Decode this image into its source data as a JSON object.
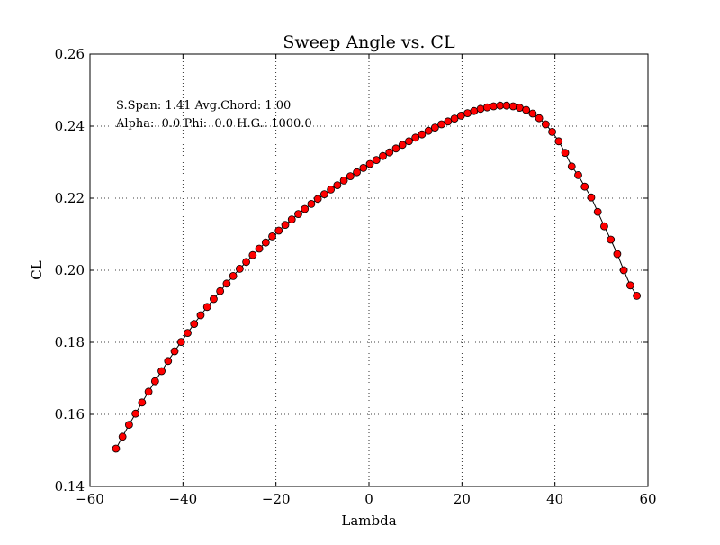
{
  "chart_data": {
    "type": "line",
    "title": "Sweep Angle vs. CL",
    "xlabel": "Lambda",
    "ylabel": "CL",
    "xlim": [
      -60,
      60
    ],
    "ylim": [
      0.14,
      0.26
    ],
    "xticks": [
      -60,
      -40,
      -20,
      0,
      20,
      40,
      60
    ],
    "yticks": [
      0.14,
      0.16,
      0.18,
      0.2,
      0.22,
      0.24,
      0.26
    ],
    "xtick_labels": [
      "−60",
      "−40",
      "−20",
      "0",
      "20",
      "40",
      "60"
    ],
    "ytick_labels": [
      "0.14",
      "0.16",
      "0.18",
      "0.20",
      "0.22",
      "0.24",
      "0.26"
    ],
    "grid": true,
    "annotations": [
      "S.Span: 1.41 Avg.Chord: 1.00",
      "Alpha:  0.0 Phi:  0.0 H.G.: 1000.0"
    ],
    "series": [
      {
        "line_color": "#000000",
        "marker": "circle",
        "marker_color": "#ff0000",
        "marker_edge_color": "#000000",
        "x": [
          -54.4,
          -53.0,
          -51.6,
          -50.2,
          -48.8,
          -47.4,
          -46.0,
          -44.6,
          -43.2,
          -41.8,
          -40.4,
          -39.0,
          -37.6,
          -36.2,
          -34.8,
          -33.4,
          -32.0,
          -30.6,
          -29.2,
          -27.8,
          -26.4,
          -25.0,
          -23.6,
          -22.2,
          -20.8,
          -19.4,
          -18.0,
          -16.6,
          -15.2,
          -13.8,
          -12.4,
          -11.0,
          -9.6,
          -8.2,
          -6.8,
          -5.4,
          -4.0,
          -2.6,
          -1.2,
          0.2,
          1.6,
          3.0,
          4.4,
          5.8,
          7.2,
          8.6,
          10.0,
          11.4,
          12.8,
          14.2,
          15.6,
          17.0,
          18.4,
          19.8,
          21.2,
          22.6,
          24.0,
          25.4,
          26.8,
          28.2,
          29.6,
          31.0,
          32.4,
          33.8,
          35.2,
          36.6,
          38.0,
          39.4,
          40.8,
          42.2,
          43.6,
          45.0,
          46.4,
          47.8,
          49.2,
          50.6,
          52.0,
          53.4,
          54.8,
          56.2,
          57.6
        ],
        "y": [
          0.1505,
          0.1538,
          0.1571,
          0.1602,
          0.1633,
          0.1663,
          0.1692,
          0.172,
          0.1748,
          0.1775,
          0.1801,
          0.1826,
          0.1851,
          0.1875,
          0.1898,
          0.192,
          0.1942,
          0.1963,
          0.1984,
          0.2004,
          0.2023,
          0.2042,
          0.206,
          0.2077,
          0.2094,
          0.211,
          0.2126,
          0.2141,
          0.2156,
          0.217,
          0.2184,
          0.2198,
          0.2211,
          0.2224,
          0.2236,
          0.2249,
          0.2261,
          0.2272,
          0.2284,
          0.2295,
          0.2306,
          0.2317,
          0.2327,
          0.2338,
          0.2348,
          0.2358,
          0.2368,
          0.2377,
          0.2387,
          0.2396,
          0.2405,
          0.2413,
          0.2421,
          0.2429,
          0.2436,
          0.2442,
          0.2448,
          0.2452,
          0.2455,
          0.2457,
          0.2457,
          0.2455,
          0.2451,
          0.2445,
          0.2435,
          0.2422,
          0.2405,
          0.2384,
          0.2358,
          0.2326,
          0.2288,
          0.2264,
          0.2232,
          0.2202,
          0.2162,
          0.2122,
          0.2085,
          0.2045,
          0.2,
          0.1958,
          0.1929
        ]
      }
    ]
  }
}
